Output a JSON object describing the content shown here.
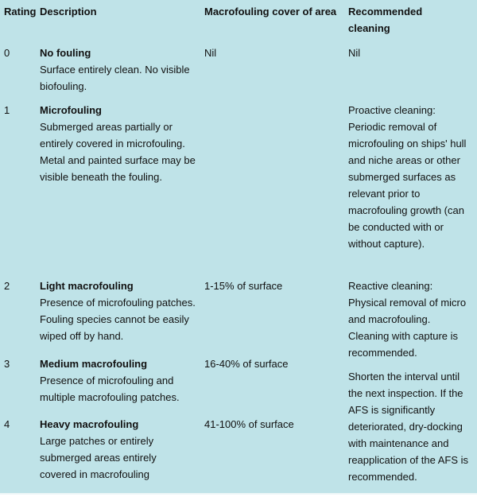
{
  "header": {
    "rating": "Rating",
    "description": "Description",
    "cover": "Macrofouling cover of area",
    "cleaning": "Recommended cleaning"
  },
  "rows": [
    {
      "rating": 0,
      "name": "No fouling",
      "description": "Surface entirely clean. No visible biofouling.",
      "cover": "Nil",
      "cleaning": "Nil"
    },
    {
      "rating": 1,
      "name": "Microfouling",
      "description": "Submerged areas partially or entirely covered in microfouling. Metal and painted surface may be visible beneath the fouling.",
      "cleaning": "Proactive cleaning: Periodic removal of microfouling on ships' hull and niche areas or other submerged surfaces as relevant prior to macrofouling growth (can be conducted with or without capture)."
    },
    {
      "rating": 2,
      "name": "Light macrofouling",
      "description": "Presence of microfouling patches. Fouling species cannot be easily wiped off by hand.",
      "cover": "1-15% of surface",
      "cleaning": "Reactive cleaning: Physical removal of micro and macrofouling. Cleaning with capture is recommended."
    },
    {
      "rating": 3,
      "name": "Medium macrofouling",
      "description": "Presence of microfouling and multiple macrofouling patches.",
      "cover": "16-40% of surface",
      "cleaning": "Shorten the interval until the next inspection. If the AFS is significantly deteriorated, dry-docking with maintenance and reapplication of the AFS is recommended."
    },
    {
      "rating": 4,
      "name": "Heavy macrofouling",
      "description": "Large patches or entirely submerged areas entirely covered in macrofouling",
      "cover": "41-100% of surface"
    }
  ]
}
